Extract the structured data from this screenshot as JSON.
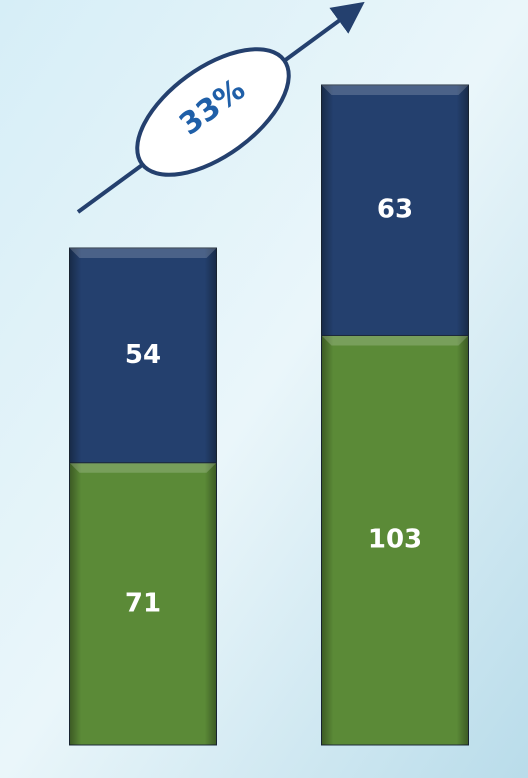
{
  "chart_data": {
    "type": "stacked-bar",
    "categories": [
      null,
      null
    ],
    "series": [
      {
        "name": null,
        "color": "#5b8a37",
        "values": [
          71,
          103
        ]
      },
      {
        "name": null,
        "color": "#24406e",
        "values": [
          54,
          63
        ]
      }
    ],
    "annotation": "33%"
  }
}
